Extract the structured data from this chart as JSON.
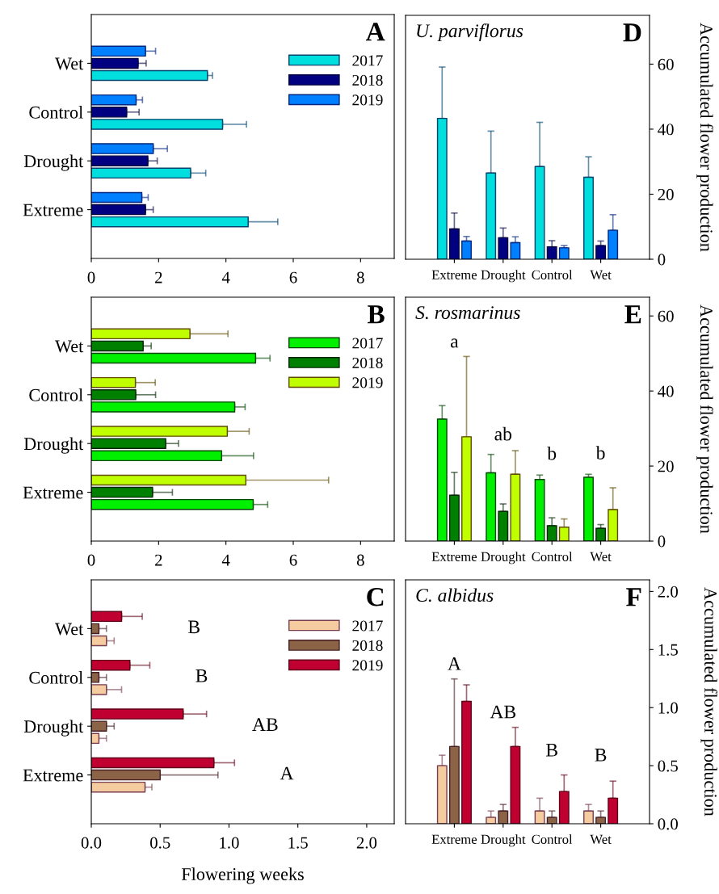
{
  "chart_data": [
    {
      "type": "bar",
      "orientation": "horizontal",
      "categories": [
        "Wet",
        "Control",
        "Drought",
        "Extreme"
      ],
      "xlim": [
        0,
        9
      ],
      "xticks": [
        0,
        2,
        4,
        6,
        8
      ],
      "legend": "top right",
      "annotations": [
        "A"
      ],
      "series": [
        {
          "name": "2017",
          "color": "#00dede",
          "values": [
            3.45,
            3.9,
            2.95,
            4.66
          ],
          "errors": [
            [
              3.45,
              3.6
            ],
            [
              3.9,
              4.61
            ],
            [
              2.95,
              3.4
            ],
            [
              4.66,
              5.54
            ]
          ]
        },
        {
          "name": "2018",
          "color": "#000080",
          "values": [
            1.39,
            1.05,
            1.68,
            1.61
          ],
          "errors": [
            [
              1.39,
              1.63
            ],
            [
              1.05,
              1.42
            ],
            [
              1.68,
              1.96
            ],
            [
              1.61,
              1.84
            ]
          ]
        },
        {
          "name": "2019",
          "color": "#0080ff",
          "values": [
            1.61,
            1.33,
            1.84,
            1.5
          ],
          "errors": [
            [
              1.61,
              1.91
            ],
            [
              1.33,
              1.52
            ],
            [
              1.84,
              2.26
            ],
            [
              1.5,
              1.69
            ]
          ]
        }
      ]
    },
    {
      "type": "bar",
      "orientation": "horizontal",
      "categories": [
        "Wet",
        "Control",
        "Drought",
        "Extreme"
      ],
      "xlim": [
        0,
        9
      ],
      "xticks": [
        0,
        2,
        4,
        6,
        8
      ],
      "legend": "top right",
      "annotations": [
        "B"
      ],
      "series": [
        {
          "name": "2017",
          "color": "#00f000",
          "values": [
            4.88,
            4.26,
            3.87,
            4.81
          ],
          "errors": [
            [
              4.88,
              5.31
            ],
            [
              4.26,
              4.57
            ],
            [
              3.87,
              4.82
            ],
            [
              4.81,
              5.24
            ]
          ]
        },
        {
          "name": "2018",
          "color": "#008000",
          "values": [
            1.54,
            1.32,
            2.21,
            1.82
          ],
          "errors": [
            [
              1.54,
              1.78
            ],
            [
              1.32,
              1.91
            ],
            [
              2.21,
              2.59
            ],
            [
              1.82,
              2.41
            ]
          ]
        },
        {
          "name": "2019",
          "color": "#c0ff00",
          "values": [
            2.93,
            1.31,
            4.04,
            4.59
          ],
          "errors": [
            [
              2.93,
              4.06
            ],
            [
              1.31,
              1.9
            ],
            [
              4.04,
              4.69
            ],
            [
              4.59,
              7.05
            ]
          ]
        }
      ]
    },
    {
      "type": "bar",
      "orientation": "horizontal",
      "categories": [
        "Wet",
        "Control",
        "Drought",
        "Extreme"
      ],
      "xlim": [
        0,
        2.2
      ],
      "xticks": [
        {
          "value": 0,
          "label": "0.0"
        },
        0.5,
        {
          "value": 1,
          "label": "1.0"
        },
        1.5,
        {
          "value": 2,
          "label": "2.0"
        }
      ],
      "xlabel": "Flowering weeks",
      "legend": "top right",
      "annotations": [
        "C",
        "B",
        "B",
        "AB",
        "A"
      ],
      "series": [
        {
          "name": "2017",
          "color": "#f5cba0",
          "values": [
            0.11,
            0.11,
            0.055,
            0.39
          ],
          "errors": [
            [
              0.11,
              0.166
            ],
            [
              0.11,
              0.22
            ],
            [
              0.055,
              0.11
            ],
            [
              0.39,
              0.44
            ]
          ]
        },
        {
          "name": "2018",
          "color": "#8b6347",
          "values": [
            0.055,
            0.055,
            0.11,
            0.5
          ],
          "errors": [
            [
              0.055,
              0.11
            ],
            [
              0.055,
              0.11
            ],
            [
              0.11,
              0.166
            ],
            [
              0.5,
              0.92
            ]
          ]
        },
        {
          "name": "2019",
          "color": "#c00030",
          "values": [
            0.22,
            0.28,
            0.667,
            0.89
          ],
          "errors": [
            [
              0.22,
              0.37
            ],
            [
              0.28,
              0.425
            ],
            [
              0.667,
              0.837
            ],
            [
              0.89,
              1.04
            ]
          ]
        }
      ]
    },
    {
      "type": "bar",
      "title": "U. parviflorus",
      "categories": [
        "Extreme",
        "Drought",
        "Control",
        "Wet"
      ],
      "ylim": [
        0,
        75
      ],
      "yticks": [
        0,
        20,
        40,
        60
      ],
      "ylabel": "Accumulated flower production",
      "annotations": [
        "D"
      ],
      "series": [
        {
          "color": "#00dede",
          "values": [
            43.3,
            26.5,
            28.5,
            25.2
          ],
          "errors": [
            [
              43.3,
              59.1
            ],
            [
              26.5,
              39.4
            ],
            [
              28.5,
              42.1
            ],
            [
              25.2,
              31.5
            ]
          ]
        },
        {
          "color": "#000080",
          "values": [
            9.3,
            6.6,
            3.8,
            4.2
          ],
          "errors": [
            [
              9.3,
              14.2
            ],
            [
              6.6,
              9.6
            ],
            [
              3.8,
              5.7
            ],
            [
              4.2,
              5.6
            ]
          ]
        },
        {
          "color": "#0080ff",
          "values": [
            5.6,
            5.1,
            3.5,
            8.9
          ],
          "errors": [
            [
              5.6,
              7.0
            ],
            [
              5.1,
              6.9
            ],
            [
              3.5,
              4.2
            ],
            [
              8.9,
              13.7
            ]
          ]
        }
      ]
    },
    {
      "type": "bar",
      "title": "S. rosmarinus",
      "categories": [
        "Extreme",
        "Drought",
        "Control",
        "Wet"
      ],
      "ylim": [
        0,
        65
      ],
      "yticks": [
        0,
        20,
        40,
        60
      ],
      "ylabel": "Accumulated flower production",
      "annotations": [
        "E",
        "a",
        "ab",
        "b",
        "b"
      ],
      "series": [
        {
          "color": "#00f000",
          "values": [
            32.5,
            18.2,
            16.4,
            17.0
          ],
          "errors": [
            [
              32.5,
              36.1
            ],
            [
              18.2,
              23.1
            ],
            [
              16.4,
              17.6
            ],
            [
              17.0,
              17.8
            ]
          ]
        },
        {
          "color": "#008000",
          "values": [
            12.2,
            7.9,
            4.1,
            3.4
          ],
          "errors": [
            [
              12.2,
              18.3
            ],
            [
              7.9,
              9.9
            ],
            [
              4.1,
              6.2
            ],
            [
              3.4,
              4.4
            ]
          ]
        },
        {
          "color": "#c0ff00",
          "values": [
            27.8,
            17.8,
            3.7,
            8.4
          ],
          "errors": [
            [
              27.8,
              49.2
            ],
            [
              17.8,
              24.1
            ],
            [
              3.7,
              5.9
            ],
            [
              8.4,
              14.2
            ]
          ]
        }
      ]
    },
    {
      "type": "bar",
      "title": "C. albidus",
      "categories": [
        "Extreme",
        "Drought",
        "Control",
        "Wet"
      ],
      "ylim": [
        0,
        2.1
      ],
      "yticks": [
        {
          "value": 0,
          "label": "0.0"
        },
        0.5,
        {
          "value": 1,
          "label": "1.0"
        },
        1.5,
        {
          "value": 2,
          "label": "2.0"
        }
      ],
      "ylabel": "Accumulated flower production",
      "annotations": [
        "F",
        "A",
        "AB",
        "B",
        "B"
      ],
      "series": [
        {
          "color": "#f5cba0",
          "values": [
            0.5,
            0.055,
            0.11,
            0.11
          ],
          "errors": [
            [
              0.5,
              0.59
            ],
            [
              0.055,
              0.11
            ],
            [
              0.11,
              0.22
            ],
            [
              0.11,
              0.166
            ]
          ]
        },
        {
          "color": "#8b6347",
          "values": [
            0.665,
            0.11,
            0.055,
            0.055
          ],
          "errors": [
            [
              0.665,
              1.247
            ],
            [
              0.11,
              0.166
            ],
            [
              0.055,
              0.11
            ],
            [
              0.055,
              0.11
            ]
          ]
        },
        {
          "color": "#c00030",
          "values": [
            1.053,
            0.665,
            0.277,
            0.22
          ],
          "errors": [
            [
              1.053,
              1.196
            ],
            [
              0.665,
              0.83
            ],
            [
              0.277,
              0.42
            ],
            [
              0.22,
              0.367
            ]
          ]
        }
      ]
    }
  ]
}
